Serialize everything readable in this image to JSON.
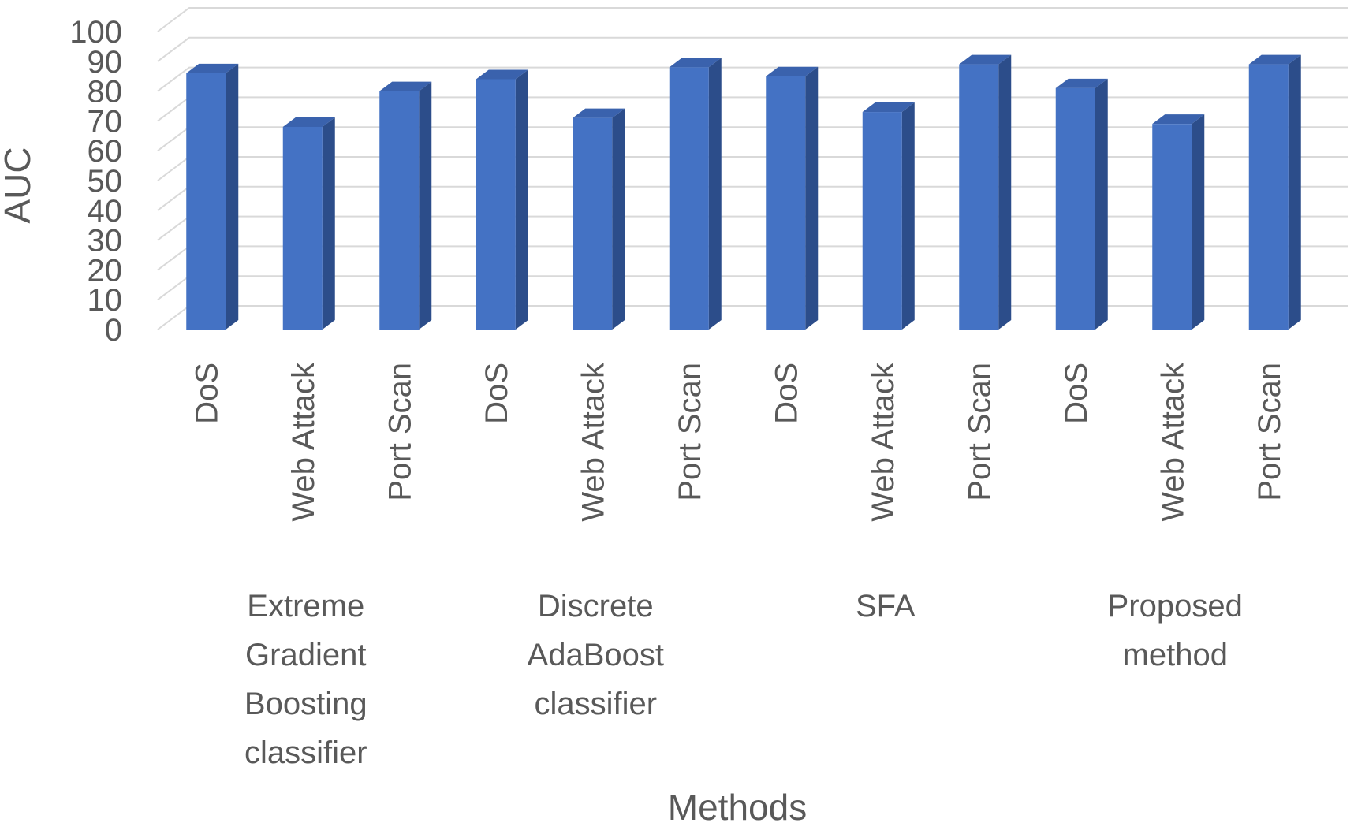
{
  "chart_data": {
    "type": "bar",
    "style": "3d-column",
    "xlabel": "Methods",
    "ylabel": "AUC",
    "ylim": [
      0,
      100
    ],
    "yticks": [
      0,
      10,
      20,
      30,
      40,
      50,
      60,
      70,
      80,
      90,
      100
    ],
    "grid": true,
    "legend": "none",
    "bar_color": "#4472C4",
    "groups": [
      {
        "label_lines": [
          "Extreme",
          "Gradient",
          "Boosting",
          "classifier"
        ],
        "categories": [
          "DoS",
          "Web Attack",
          "Port Scan"
        ],
        "values": [
          86,
          68,
          80
        ]
      },
      {
        "label_lines": [
          "Discrete",
          "AdaBoost",
          "classifier"
        ],
        "categories": [
          "DoS",
          "Web Attack",
          "Port Scan"
        ],
        "values": [
          84,
          71,
          88
        ]
      },
      {
        "label_lines": [
          "SFA"
        ],
        "categories": [
          "DoS",
          "Web Attack",
          "Port Scan"
        ],
        "values": [
          85,
          73,
          89
        ]
      },
      {
        "label_lines": [
          "Proposed",
          "method"
        ],
        "categories": [
          "DoS",
          "Web Attack",
          "Port Scan"
        ],
        "values": [
          81,
          69,
          89
        ]
      }
    ]
  }
}
